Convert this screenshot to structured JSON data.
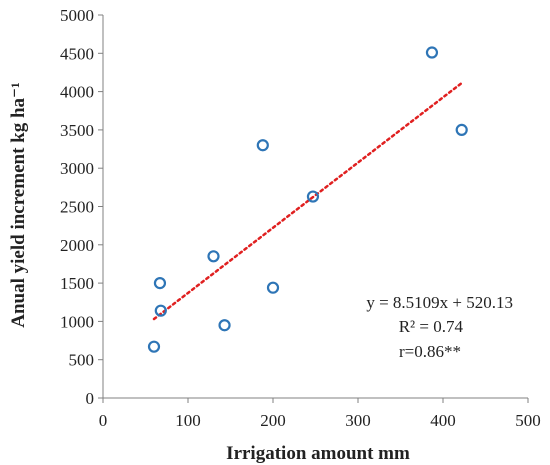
{
  "chart_data": {
    "type": "scatter",
    "title": "",
    "xlabel": "Irrigation amount mm",
    "ylabel": "Anual yield increment kg ha⁻¹",
    "xlim": [
      0,
      500
    ],
    "ylim": [
      0,
      5000
    ],
    "xticks": [
      0,
      100,
      200,
      300,
      400,
      500
    ],
    "yticks": [
      0,
      500,
      1000,
      1500,
      2000,
      2500,
      3000,
      3500,
      4000,
      4500,
      5000
    ],
    "grid": false,
    "legend": "none",
    "marker": "hollow-circle",
    "marker_color": "#2E75B6",
    "points": [
      {
        "x": 60,
        "y": 670
      },
      {
        "x": 67,
        "y": 1500
      },
      {
        "x": 68,
        "y": 1140
      },
      {
        "x": 130,
        "y": 1850
      },
      {
        "x": 143,
        "y": 950
      },
      {
        "x": 188,
        "y": 3300
      },
      {
        "x": 200,
        "y": 1440
      },
      {
        "x": 247,
        "y": 2630
      },
      {
        "x": 387,
        "y": 4510
      },
      {
        "x": 422,
        "y": 3500
      }
    ],
    "trendline": {
      "type": "linear",
      "slope": 8.5109,
      "intercept": 520.13,
      "x_range": [
        60,
        422
      ],
      "style": "dotted",
      "color": "#E02020"
    },
    "annotations": [
      "y = 8.5109x + 520.13",
      "R² = 0.74",
      "r=0.86**"
    ]
  },
  "colors": {
    "axis": "#808080",
    "marker": "#2E75B6",
    "trendline": "#E02020"
  }
}
